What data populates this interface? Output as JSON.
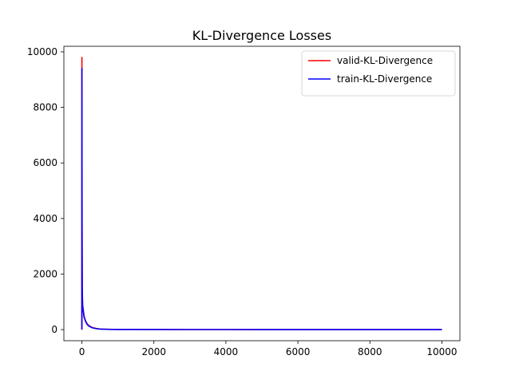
{
  "chart_data": {
    "type": "line",
    "title": "KL-Divergence Losses",
    "xlabel": "",
    "ylabel": "",
    "xlim": [
      -500,
      10500
    ],
    "ylim": [
      -400,
      10200
    ],
    "x_ticks": [
      0,
      2000,
      4000,
      6000,
      8000,
      10000
    ],
    "x_tick_labels": [
      "0",
      "2000",
      "4000",
      "6000",
      "8000",
      "10000"
    ],
    "y_ticks": [
      0,
      2000,
      4000,
      6000,
      8000,
      10000
    ],
    "y_tick_labels": [
      "0",
      "2000",
      "4000",
      "6000",
      "8000",
      "10000"
    ],
    "grid": false,
    "legend_position": "upper-right",
    "series": [
      {
        "name": "valid-KL-Divergence",
        "color": "#ff0000",
        "x": [
          0,
          1,
          3,
          5,
          8,
          10,
          15,
          20,
          30,
          40,
          50,
          60,
          80,
          100,
          125,
          150,
          200,
          250,
          300,
          400,
          500,
          750,
          1000,
          2000,
          3000,
          4000,
          5000,
          6000,
          7000,
          8000,
          9000,
          10000
        ],
        "y": [
          0,
          9800,
          7500,
          4000,
          2200,
          1500,
          1200,
          900,
          800,
          700,
          600,
          500,
          400,
          320,
          260,
          200,
          140,
          100,
          70,
          40,
          20,
          10,
          6,
          3,
          2,
          2,
          1,
          1,
          1,
          1,
          1,
          1
        ]
      },
      {
        "name": "train-KL-Divergence",
        "color": "#0000ff",
        "x": [
          0,
          1,
          3,
          5,
          8,
          10,
          15,
          20,
          30,
          40,
          50,
          60,
          80,
          100,
          125,
          150,
          200,
          250,
          300,
          400,
          500,
          750,
          1000,
          2000,
          3000,
          4000,
          5000,
          6000,
          7000,
          8000,
          9000,
          10000
        ],
        "y": [
          0,
          9400,
          7000,
          3600,
          2000,
          1500,
          1100,
          850,
          750,
          650,
          550,
          450,
          380,
          300,
          240,
          180,
          120,
          90,
          60,
          35,
          18,
          8,
          5,
          3,
          2,
          2,
          1,
          1,
          1,
          1,
          1,
          1
        ]
      }
    ]
  }
}
